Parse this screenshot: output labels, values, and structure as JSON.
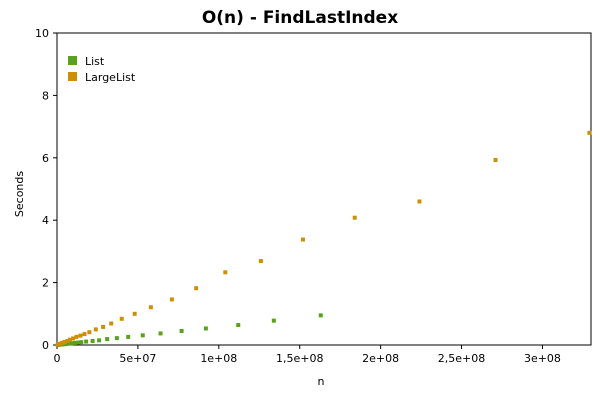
{
  "chart_data": {
    "type": "scatter",
    "title": "O(n) - FindLastIndex",
    "xlabel": "n",
    "ylabel": "Seconds",
    "xlim": [
      0,
      330000000
    ],
    "ylim": [
      0,
      10
    ],
    "x_ticks": [
      {
        "value": 0,
        "label": "0"
      },
      {
        "value": 50000000,
        "label": "5e+07"
      },
      {
        "value": 100000000,
        "label": "1e+08"
      },
      {
        "value": 150000000,
        "label": "1,5e+08"
      },
      {
        "value": 200000000,
        "label": "2e+08"
      },
      {
        "value": 250000000,
        "label": "2,5e+08"
      },
      {
        "value": 300000000,
        "label": "3e+08"
      }
    ],
    "y_ticks": [
      {
        "value": 0,
        "label": "0"
      },
      {
        "value": 2,
        "label": "2"
      },
      {
        "value": 4,
        "label": "4"
      },
      {
        "value": 6,
        "label": "6"
      },
      {
        "value": 8,
        "label": "8"
      },
      {
        "value": 10,
        "label": "10"
      }
    ],
    "grid": false,
    "legend_position": "top-left",
    "series": [
      {
        "name": "List",
        "color": "#5aa21d",
        "points": [
          [
            500000,
            0.003
          ],
          [
            1000000,
            0.006
          ],
          [
            2000000,
            0.012
          ],
          [
            3000000,
            0.018
          ],
          [
            4000000,
            0.024
          ],
          [
            5000000,
            0.03
          ],
          [
            6000000,
            0.036
          ],
          [
            7500000,
            0.045
          ],
          [
            9000000,
            0.054
          ],
          [
            11000000,
            0.066
          ],
          [
            13000000,
            0.078
          ],
          [
            15000000,
            0.09
          ],
          [
            18000000,
            0.11
          ],
          [
            22000000,
            0.13
          ],
          [
            26000000,
            0.15
          ],
          [
            31000000,
            0.19
          ],
          [
            37000000,
            0.22
          ],
          [
            44000000,
            0.26
          ],
          [
            53000000,
            0.31
          ],
          [
            64000000,
            0.37
          ],
          [
            77000000,
            0.45
          ],
          [
            92000000,
            0.53
          ],
          [
            112000000,
            0.64
          ],
          [
            134000000,
            0.78
          ],
          [
            163000000,
            0.95
          ]
        ]
      },
      {
        "name": "LargeList",
        "color": "#cc8f06",
        "points": [
          [
            500000,
            0.01
          ],
          [
            1000000,
            0.02
          ],
          [
            2000000,
            0.04
          ],
          [
            3000000,
            0.06
          ],
          [
            4000000,
            0.08
          ],
          [
            5000000,
            0.1
          ],
          [
            6500000,
            0.13
          ],
          [
            8000000,
            0.17
          ],
          [
            10000000,
            0.21
          ],
          [
            12000000,
            0.26
          ],
          [
            14500000,
            0.3
          ],
          [
            17000000,
            0.35
          ],
          [
            20000000,
            0.41
          ],
          [
            24000000,
            0.5
          ],
          [
            28500000,
            0.58
          ],
          [
            33500000,
            0.69
          ],
          [
            40000000,
            0.84
          ],
          [
            48000000,
            1.0
          ],
          [
            58000000,
            1.21
          ],
          [
            71000000,
            1.46
          ],
          [
            86000000,
            1.82
          ],
          [
            104000000,
            2.33
          ],
          [
            126000000,
            2.69
          ],
          [
            152000000,
            3.38
          ],
          [
            184000000,
            4.08
          ],
          [
            224000000,
            4.6
          ],
          [
            271000000,
            5.93
          ],
          [
            329000000,
            6.8
          ]
        ]
      }
    ]
  }
}
